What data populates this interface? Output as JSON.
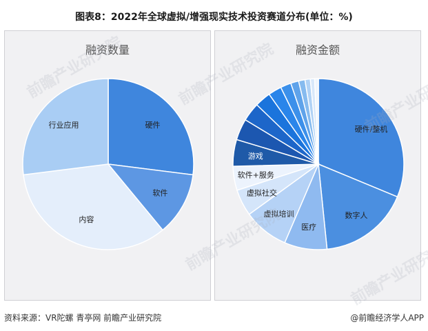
{
  "title": "图表8：2022年全球虚拟/增强现实技术投资赛道分布(单位：%)",
  "footer": {
    "source": "资料来源：VR陀螺 青亭网 前瞻产业研究院",
    "brand": "@前瞻经济学人APP"
  },
  "watermark": "前瞻产业研究院",
  "colors": {
    "dark_blue": "#1f5aa8",
    "blue": "#3f86dd",
    "mid_blue": "#5d97e3",
    "light_blue": "#a9cdf4",
    "pale_blue": "#e4eefb"
  },
  "chart_data": [
    {
      "type": "pie",
      "title": "融资数量",
      "slices": [
        {
          "label": "硬件",
          "value": 27,
          "color": "#3f86dd"
        },
        {
          "label": "软件",
          "value": 12,
          "color": "#5d97e3"
        },
        {
          "label": "内容",
          "value": 34,
          "color": "#e4eefb"
        },
        {
          "label": "行业应用",
          "value": 27,
          "color": "#a9cdf4"
        }
      ]
    },
    {
      "type": "pie",
      "title": "融资金额",
      "slices": [
        {
          "label": "硬件/整机",
          "value": 31,
          "color": "#3f86dd"
        },
        {
          "label": "数字人",
          "value": 17,
          "color": "#4b8fe0"
        },
        {
          "label": "医疗",
          "value": 8,
          "color": "#8fbaf0"
        },
        {
          "label": "虚拟培训",
          "value": 8.5,
          "color": "#b5d2f6"
        },
        {
          "label": "虚拟社交",
          "value": 5,
          "color": "#d4e5fa"
        },
        {
          "label": "软件+服务",
          "value": 4.5,
          "color": "#ecf3fd"
        },
        {
          "label": "游戏",
          "value": 5,
          "color": "#1f5aa8"
        },
        {
          "label": "",
          "value": 4,
          "color": "#1c57b0"
        },
        {
          "label": "",
          "value": 3.5,
          "color": "#1d66c9"
        },
        {
          "label": "",
          "value": 3,
          "color": "#1b74dc"
        },
        {
          "label": "",
          "value": 2.5,
          "color": "#2a85ea"
        },
        {
          "label": "",
          "value": 2,
          "color": "#3c90ea"
        },
        {
          "label": "",
          "value": 1.5,
          "color": "#5fa3ea"
        },
        {
          "label": "",
          "value": 1.2,
          "color": "#86bbef"
        },
        {
          "label": "",
          "value": 1,
          "color": "#b0d2f5"
        },
        {
          "label": "",
          "value": 0.8,
          "color": "#d8e8fa"
        },
        {
          "label": "",
          "value": 0.7,
          "color": "#eef5fd"
        }
      ]
    }
  ]
}
